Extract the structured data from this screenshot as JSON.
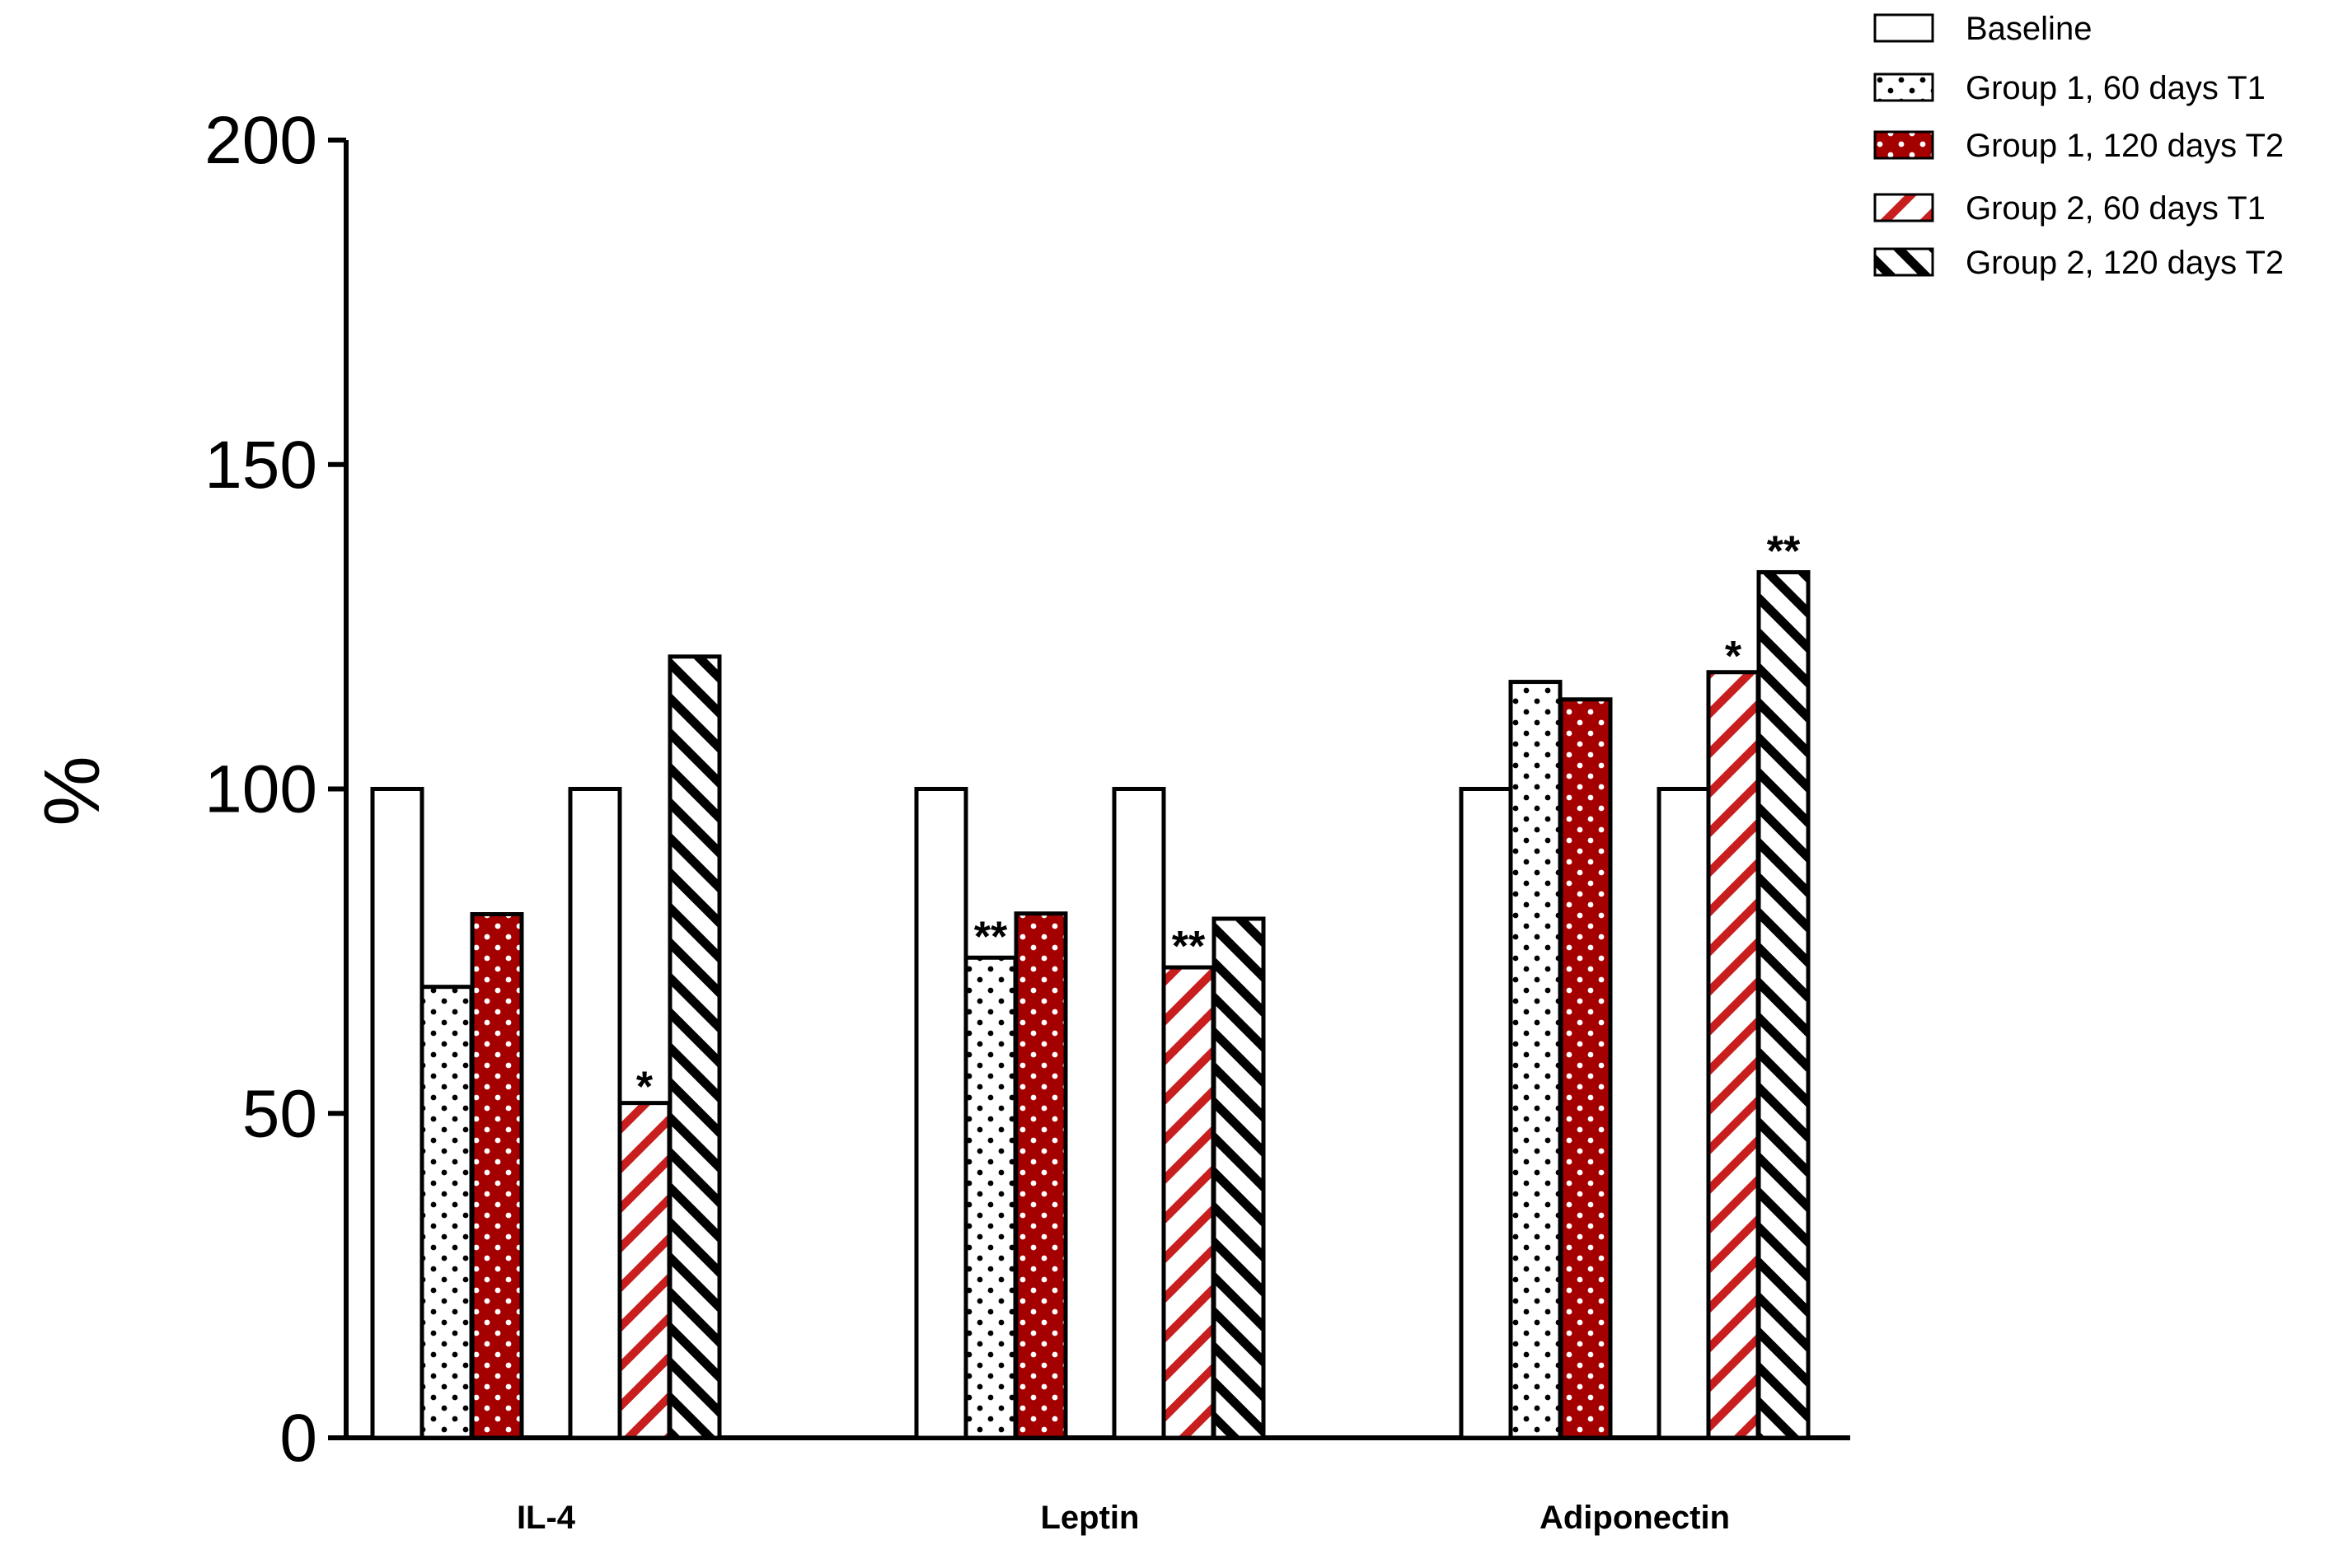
{
  "colors": {
    "dark_red": "#a50000",
    "red_stripe": "#c81e1e",
    "black": "#000000",
    "white": "#ffffff"
  },
  "chart_data": {
    "type": "bar",
    "title": "",
    "xlabel": "",
    "ylabel": "%",
    "ylim": [
      0,
      200
    ],
    "yticks": [
      0,
      50,
      100,
      150,
      200
    ],
    "categories": [
      "IL-4",
      "Leptin",
      "Adiponectin"
    ],
    "legend_position": "top-right",
    "series": [
      {
        "name": "Baseline",
        "group": 1,
        "pattern": "white",
        "values": [
          100,
          100,
          100
        ]
      },
      {
        "name": "Group 1, 60 days T1",
        "group": 1,
        "pattern": "dots-white",
        "values": [
          69.5,
          74,
          116.5
        ]
      },
      {
        "name": "Group 1, 120 days T2",
        "group": 1,
        "pattern": "dots-red",
        "values": [
          80.7,
          80.8,
          113.8
        ]
      },
      {
        "name": "Baseline",
        "group": 2,
        "pattern": "white",
        "values": [
          100,
          100,
          100
        ]
      },
      {
        "name": "Group 2, 60 days T1",
        "group": 2,
        "pattern": "hatch-red",
        "values": [
          51.6,
          72.5,
          118
        ]
      },
      {
        "name": "Group 2, 120 days T2",
        "group": 2,
        "pattern": "hatch-black",
        "values": [
          120.4,
          80,
          133.4
        ]
      }
    ],
    "legend": [
      {
        "label": "Baseline",
        "pattern": "white"
      },
      {
        "label": "Group 1, 60 days T1",
        "pattern": "dots-white"
      },
      {
        "label": "Group 1, 120 days T2",
        "pattern": "dots-red"
      },
      {
        "label": "Group 2, 60 days T1",
        "pattern": "hatch-red"
      },
      {
        "label": "Group 2, 120 days T2",
        "pattern": "hatch-black"
      }
    ],
    "annotations": [
      {
        "category_index": 0,
        "series_index": 4,
        "text": "*"
      },
      {
        "category_index": 1,
        "series_index": 1,
        "text": "**"
      },
      {
        "category_index": 1,
        "series_index": 4,
        "text": "**"
      },
      {
        "category_index": 2,
        "series_index": 4,
        "text": "*"
      },
      {
        "category_index": 2,
        "series_index": 5,
        "text": "**"
      }
    ]
  }
}
